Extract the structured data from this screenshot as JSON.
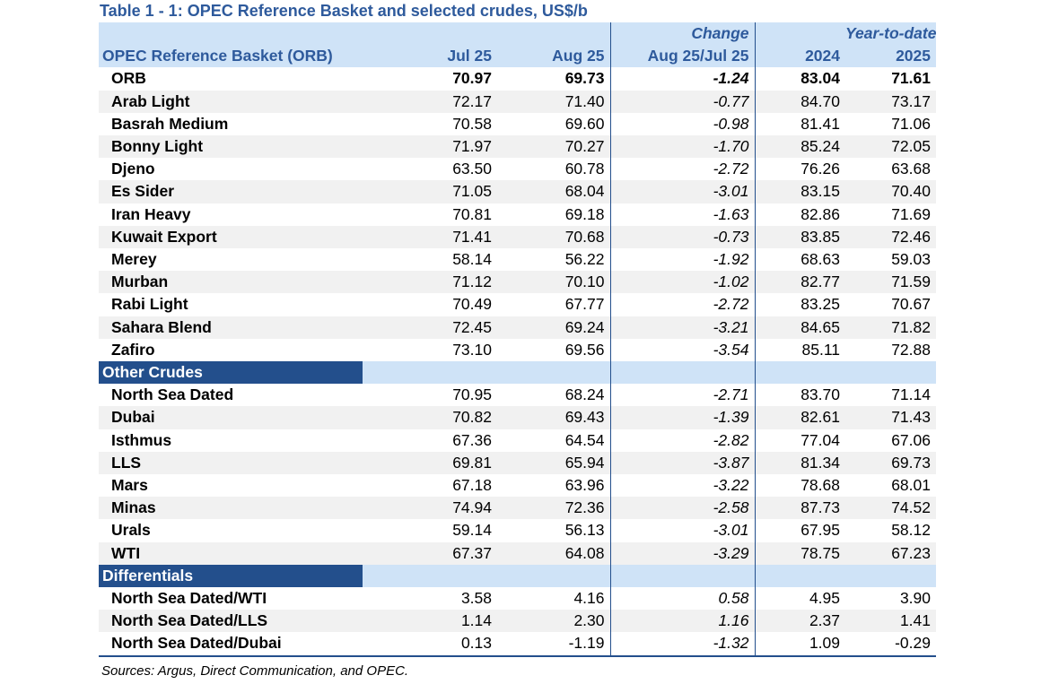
{
  "title": "Table 1 - 1: OPEC Reference Basket and selected crudes, US$/b",
  "header": {
    "change_label": "Change",
    "ytd_label": "Year-to-date",
    "orb_label": "OPEC Reference Basket (ORB)",
    "jul": "Jul 25",
    "aug": "Aug 25",
    "chg": "Aug 25/Jul 25",
    "y2024": "2024",
    "y2025": "2025"
  },
  "orb_rows": [
    {
      "name": "ORB",
      "jul": "70.97",
      "aug": "69.73",
      "chg": "-1.24",
      "y2024": "83.04",
      "y2025": "71.61"
    },
    {
      "name": "Arab Light",
      "jul": "72.17",
      "aug": "71.40",
      "chg": "-0.77",
      "y2024": "84.70",
      "y2025": "73.17"
    },
    {
      "name": "Basrah Medium",
      "jul": "70.58",
      "aug": "69.60",
      "chg": "-0.98",
      "y2024": "81.41",
      "y2025": "71.06"
    },
    {
      "name": "Bonny Light",
      "jul": "71.97",
      "aug": "70.27",
      "chg": "-1.70",
      "y2024": "85.24",
      "y2025": "72.05"
    },
    {
      "name": "Djeno",
      "jul": "63.50",
      "aug": "60.78",
      "chg": "-2.72",
      "y2024": "76.26",
      "y2025": "63.68"
    },
    {
      "name": "Es Sider",
      "jul": "71.05",
      "aug": "68.04",
      "chg": "-3.01",
      "y2024": "83.15",
      "y2025": "70.40"
    },
    {
      "name": "Iran Heavy",
      "jul": "70.81",
      "aug": "69.18",
      "chg": "-1.63",
      "y2024": "82.86",
      "y2025": "71.69"
    },
    {
      "name": "Kuwait Export",
      "jul": "71.41",
      "aug": "70.68",
      "chg": "-0.73",
      "y2024": "83.85",
      "y2025": "72.46"
    },
    {
      "name": "Merey",
      "jul": "58.14",
      "aug": "56.22",
      "chg": "-1.92",
      "y2024": "68.63",
      "y2025": "59.03"
    },
    {
      "name": "Murban",
      "jul": "71.12",
      "aug": "70.10",
      "chg": "-1.02",
      "y2024": "82.77",
      "y2025": "71.59"
    },
    {
      "name": "Rabi Light",
      "jul": "70.49",
      "aug": "67.77",
      "chg": "-2.72",
      "y2024": "83.25",
      "y2025": "70.67"
    },
    {
      "name": "Sahara Blend",
      "jul": "72.45",
      "aug": "69.24",
      "chg": "-3.21",
      "y2024": "84.65",
      "y2025": "71.82"
    },
    {
      "name": "Zafiro",
      "jul": "73.10",
      "aug": "69.56",
      "chg": "-3.54",
      "y2024": "85.11",
      "y2025": "72.88"
    }
  ],
  "other_label": "Other Crudes",
  "other_rows": [
    {
      "name": "North Sea Dated",
      "jul": "70.95",
      "aug": "68.24",
      "chg": "-2.71",
      "y2024": "83.70",
      "y2025": "71.14"
    },
    {
      "name": "Dubai",
      "jul": "70.82",
      "aug": "69.43",
      "chg": "-1.39",
      "y2024": "82.61",
      "y2025": "71.43"
    },
    {
      "name": "Isthmus",
      "jul": "67.36",
      "aug": "64.54",
      "chg": "-2.82",
      "y2024": "77.04",
      "y2025": "67.06"
    },
    {
      "name": "LLS",
      "jul": "69.81",
      "aug": "65.94",
      "chg": "-3.87",
      "y2024": "81.34",
      "y2025": "69.73"
    },
    {
      "name": "Mars",
      "jul": "67.18",
      "aug": "63.96",
      "chg": "-3.22",
      "y2024": "78.68",
      "y2025": "68.01"
    },
    {
      "name": "Minas",
      "jul": "74.94",
      "aug": "72.36",
      "chg": "-2.58",
      "y2024": "87.73",
      "y2025": "74.52"
    },
    {
      "name": "Urals",
      "jul": "59.14",
      "aug": "56.13",
      "chg": "-3.01",
      "y2024": "67.95",
      "y2025": "58.12"
    },
    {
      "name": "WTI",
      "jul": "67.37",
      "aug": "64.08",
      "chg": "-3.29",
      "y2024": "78.75",
      "y2025": "67.23"
    }
  ],
  "diff_label": "Differentials",
  "diff_rows": [
    {
      "name": "North Sea Dated/WTI",
      "jul": "3.58",
      "aug": "4.16",
      "chg": "0.58",
      "y2024": "4.95",
      "y2025": "3.90"
    },
    {
      "name": "North Sea Dated/LLS",
      "jul": "1.14",
      "aug": "2.30",
      "chg": "1.16",
      "y2024": "2.37",
      "y2025": "1.41"
    },
    {
      "name": "North Sea Dated/Dubai",
      "jul": "0.13",
      "aug": "-1.19",
      "chg": "-1.32",
      "y2024": "1.09",
      "y2025": "-0.29"
    }
  ],
  "source": "Sources:  Argus, Direct Communication, and OPEC."
}
